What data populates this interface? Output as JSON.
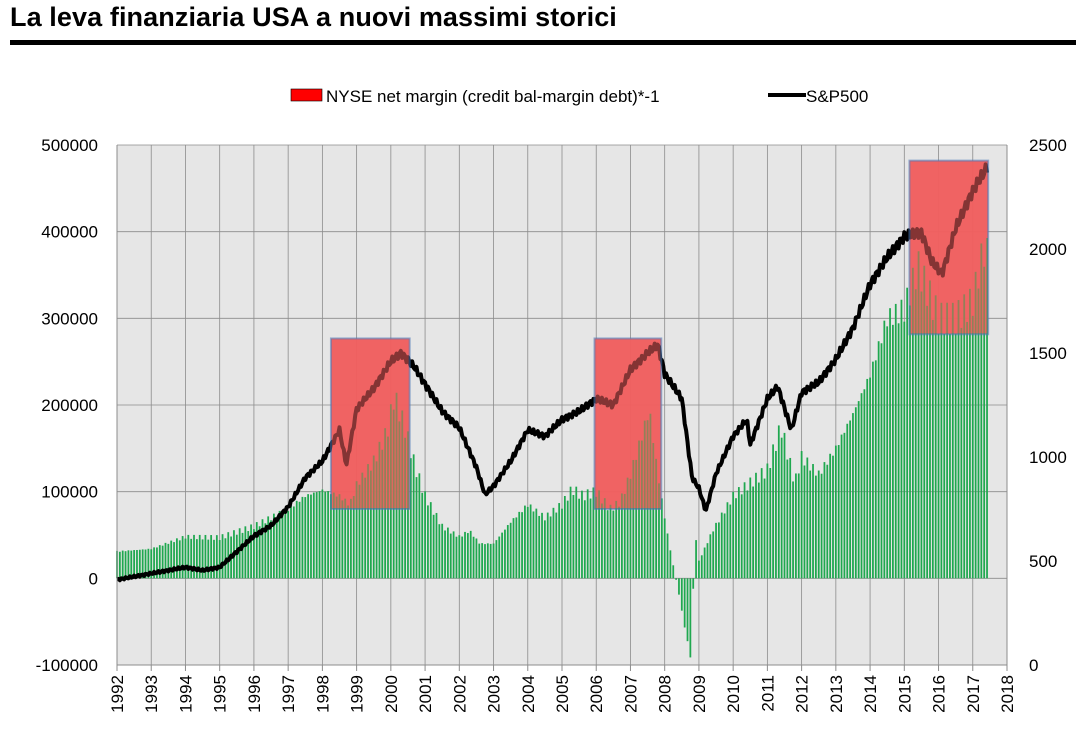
{
  "title": "La leva finanziaria USA a nuovi massimi storici",
  "colors": {
    "bars": "#1fa84f",
    "line": "#000000",
    "plot_bg": "#e6e6e6",
    "grid": "#8c8c8c",
    "highlight_fill": "#f06060",
    "highlight_border": "#4a78b8",
    "legend_red": "#ff0000"
  },
  "chart_data": {
    "type": "bar+line",
    "x_ticks": [
      "1992",
      "1993",
      "1994",
      "1995",
      "1996",
      "1997",
      "1998",
      "1999",
      "2000",
      "2001",
      "2002",
      "2003",
      "2004",
      "2005",
      "2006",
      "2007",
      "2008",
      "2009",
      "2010",
      "2011",
      "2012",
      "2013",
      "2014",
      "2015",
      "2016",
      "2017",
      "2018"
    ],
    "x_range": [
      1992,
      2018
    ],
    "y_left": {
      "range": [
        -100000,
        500000
      ],
      "ticks": [
        "-100000",
        "0",
        "100000",
        "200000",
        "300000",
        "400000",
        "500000"
      ]
    },
    "y_right": {
      "range": [
        0,
        2500
      ],
      "ticks": [
        "0",
        "500",
        "1000",
        "1500",
        "2000",
        "2500"
      ]
    },
    "legend": {
      "position": "top",
      "items": [
        "NYSE net margin (credit bal-margin debt)*-1",
        "S&P500"
      ]
    },
    "highlight_periods": [
      {
        "x": [
          1998.25,
          2000.55
        ],
        "y_right": [
          750,
          1570
        ]
      },
      {
        "x": [
          2005.95,
          2007.9
        ],
        "y_right": [
          750,
          1570
        ]
      },
      {
        "x": [
          2015.15,
          2017.45
        ],
        "y_right": [
          1590,
          2425
        ]
      }
    ],
    "series": [
      {
        "name": "NYSE net margin (credit bal-margin debt)*-1",
        "kind": "bar",
        "axis": "left",
        "anchors": [
          [
            1992.0,
            31000
          ],
          [
            1993.0,
            34000
          ],
          [
            1994.0,
            48000
          ],
          [
            1995.0,
            47000
          ],
          [
            1996.0,
            60000
          ],
          [
            1997.0,
            80000
          ],
          [
            1997.5,
            95000
          ],
          [
            1998.0,
            102000
          ],
          [
            1998.5,
            95000
          ],
          [
            1998.8,
            85000
          ],
          [
            1999.0,
            108000
          ],
          [
            1999.5,
            135000
          ],
          [
            1999.9,
            170000
          ],
          [
            2000.1,
            210000
          ],
          [
            2000.4,
            175000
          ],
          [
            2000.7,
            130000
          ],
          [
            2001.0,
            95000
          ],
          [
            2001.5,
            60000
          ],
          [
            2002.0,
            48000
          ],
          [
            2002.3,
            55000
          ],
          [
            2002.6,
            40000
          ],
          [
            2003.0,
            40000
          ],
          [
            2003.5,
            65000
          ],
          [
            2004.0,
            85000
          ],
          [
            2004.5,
            70000
          ],
          [
            2005.0,
            85000
          ],
          [
            2005.3,
            103000
          ],
          [
            2005.6,
            95000
          ],
          [
            2006.0,
            100000
          ],
          [
            2006.4,
            80000
          ],
          [
            2006.7,
            88000
          ],
          [
            2007.0,
            120000
          ],
          [
            2007.3,
            160000
          ],
          [
            2007.55,
            195000
          ],
          [
            2007.8,
            120000
          ],
          [
            2008.0,
            70000
          ],
          [
            2008.2,
            25000
          ],
          [
            2008.4,
            -15000
          ],
          [
            2008.6,
            -60000
          ],
          [
            2008.75,
            -90000
          ],
          [
            2008.9,
            50000
          ],
          [
            2009.0,
            20000
          ],
          [
            2009.4,
            55000
          ],
          [
            2010.0,
            95000
          ],
          [
            2010.5,
            110000
          ],
          [
            2011.0,
            125000
          ],
          [
            2011.4,
            175000
          ],
          [
            2011.8,
            110000
          ],
          [
            2012.0,
            140000
          ],
          [
            2012.5,
            120000
          ],
          [
            2013.0,
            150000
          ],
          [
            2013.5,
            190000
          ],
          [
            2014.0,
            235000
          ],
          [
            2014.5,
            300000
          ],
          [
            2015.0,
            310000
          ],
          [
            2015.4,
            360000
          ],
          [
            2015.8,
            320000
          ],
          [
            2016.0,
            300000
          ],
          [
            2016.5,
            300000
          ],
          [
            2017.0,
            320000
          ],
          [
            2017.3,
            378000
          ],
          [
            2017.45,
            375000
          ]
        ]
      },
      {
        "name": "S&P500",
        "kind": "line",
        "axis": "right",
        "anchors": [
          [
            1992.0,
            410
          ],
          [
            1993.0,
            440
          ],
          [
            1994.0,
            470
          ],
          [
            1994.5,
            455
          ],
          [
            1995.0,
            470
          ],
          [
            1996.0,
            620
          ],
          [
            1996.5,
            670
          ],
          [
            1997.0,
            760
          ],
          [
            1997.5,
            900
          ],
          [
            1998.0,
            980
          ],
          [
            1998.5,
            1130
          ],
          [
            1998.7,
            960
          ],
          [
            1999.0,
            1230
          ],
          [
            1999.5,
            1330
          ],
          [
            2000.0,
            1460
          ],
          [
            2000.3,
            1500
          ],
          [
            2000.7,
            1430
          ],
          [
            2001.0,
            1350
          ],
          [
            2001.5,
            1220
          ],
          [
            2002.0,
            1140
          ],
          [
            2002.5,
            950
          ],
          [
            2002.75,
            820
          ],
          [
            2003.0,
            860
          ],
          [
            2003.5,
            980
          ],
          [
            2004.0,
            1130
          ],
          [
            2004.5,
            1100
          ],
          [
            2005.0,
            1180
          ],
          [
            2005.5,
            1220
          ],
          [
            2006.0,
            1280
          ],
          [
            2006.5,
            1250
          ],
          [
            2007.0,
            1420
          ],
          [
            2007.5,
            1500
          ],
          [
            2007.8,
            1540
          ],
          [
            2008.0,
            1400
          ],
          [
            2008.5,
            1280
          ],
          [
            2008.8,
            900
          ],
          [
            2009.0,
            850
          ],
          [
            2009.2,
            740
          ],
          [
            2009.5,
            920
          ],
          [
            2010.0,
            1100
          ],
          [
            2010.4,
            1180
          ],
          [
            2010.5,
            1060
          ],
          [
            2011.0,
            1280
          ],
          [
            2011.3,
            1340
          ],
          [
            2011.7,
            1130
          ],
          [
            2012.0,
            1310
          ],
          [
            2012.5,
            1360
          ],
          [
            2013.0,
            1470
          ],
          [
            2013.5,
            1620
          ],
          [
            2014.0,
            1830
          ],
          [
            2014.5,
            1960
          ],
          [
            2015.0,
            2060
          ],
          [
            2015.5,
            2080
          ],
          [
            2015.8,
            1940
          ],
          [
            2016.1,
            1880
          ],
          [
            2016.5,
            2100
          ],
          [
            2017.0,
            2280
          ],
          [
            2017.45,
            2400
          ]
        ]
      }
    ]
  }
}
